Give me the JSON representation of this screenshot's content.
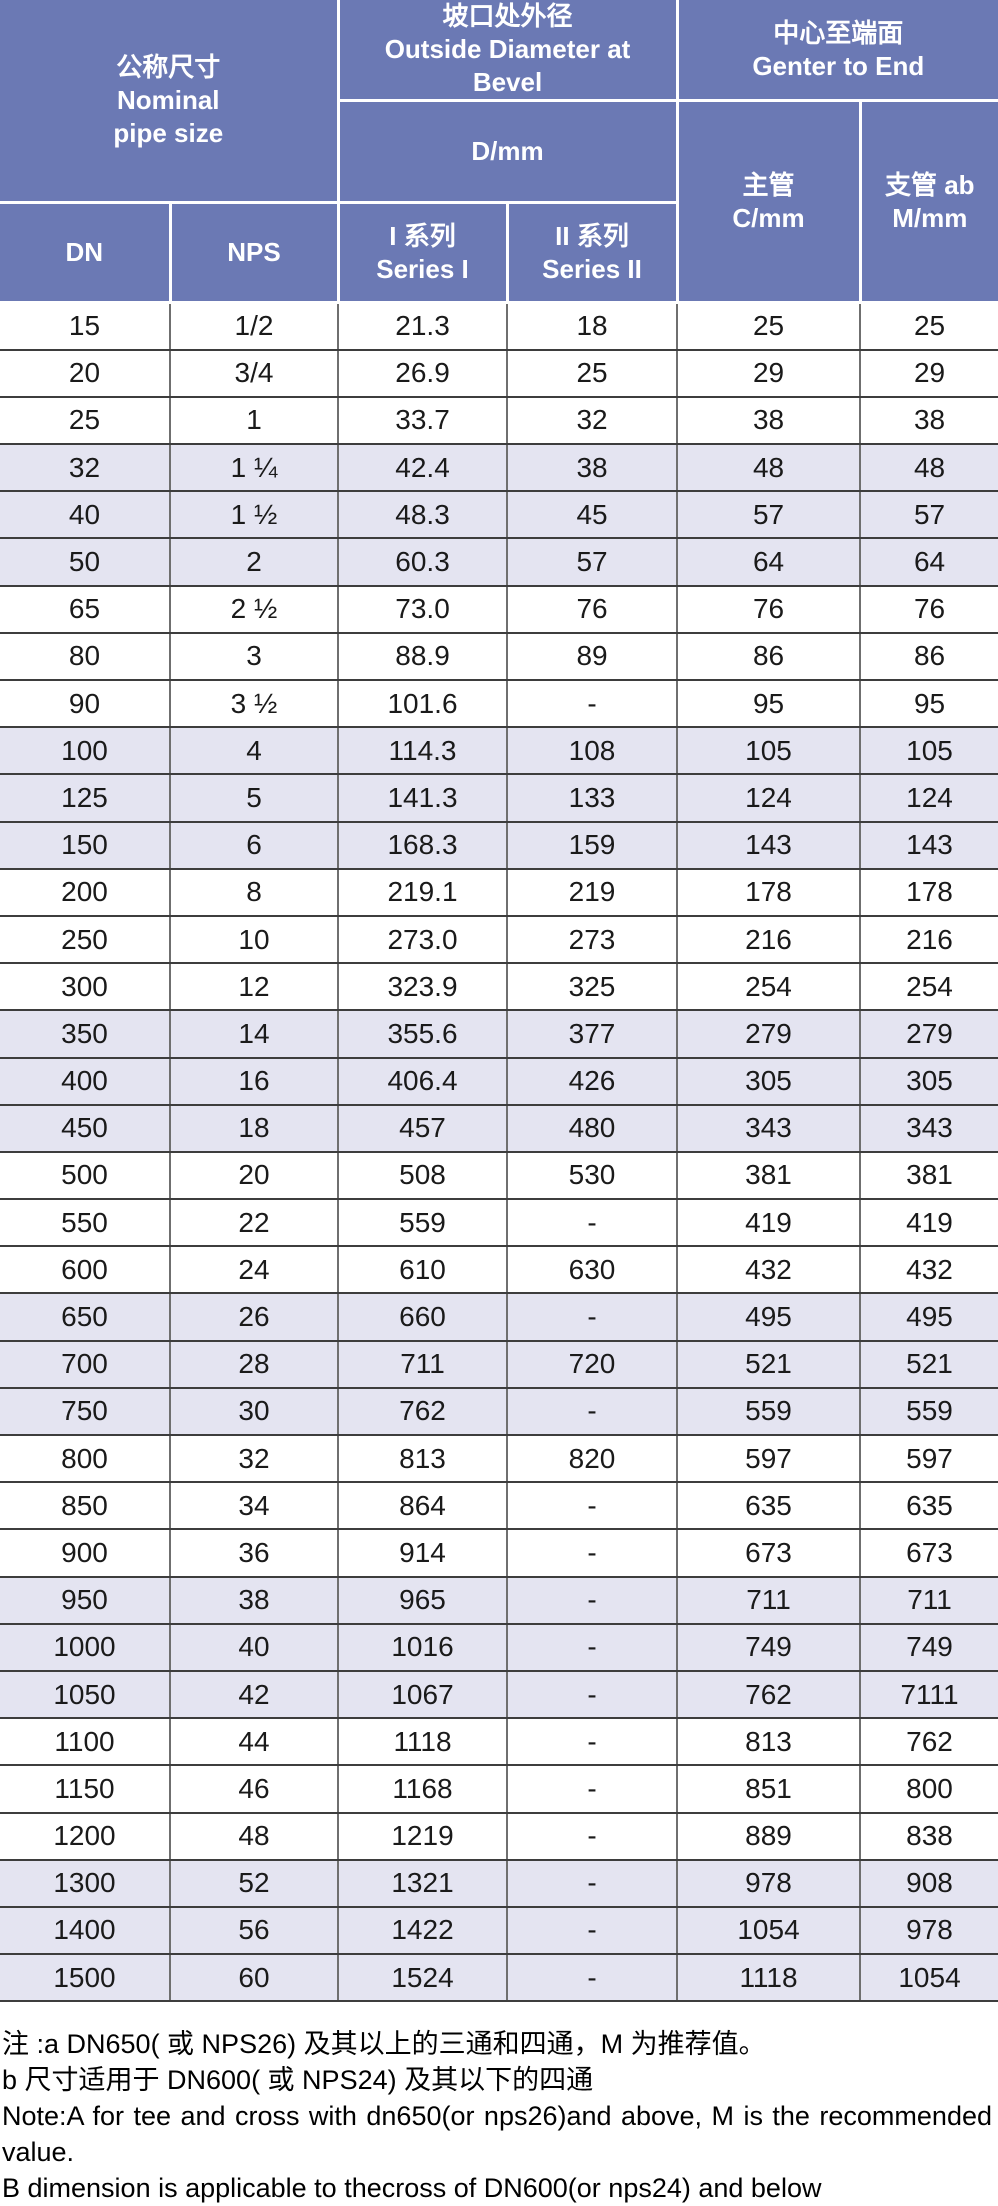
{
  "colors": {
    "header_bg": "#6b79b4",
    "header_text": "#ffffff",
    "shaded_row_bg": "#e4e4f1",
    "grid_vertical": "#6f6f6f",
    "grid_horizontal": "#3d3d3d"
  },
  "header": {
    "nominal_zh": "公称尺寸",
    "nominal_en_line1": "Nominal",
    "nominal_en_line2": "pipe size",
    "od_zh": "坡口处外径",
    "od_en": "Outside Diameter at Bevel",
    "d_label": "D/mm",
    "center_zh": "中心至端面",
    "center_en": "Genter to End",
    "dn": "DN",
    "nps": "NPS",
    "series1_zh": "I 系列",
    "series1_en": "Series I",
    "series2_zh": "II 系列",
    "series2_en": "Series II",
    "main_zh": "主管",
    "main_en": "C/mm",
    "branch_zh": "支管 ab",
    "branch_en": "M/mm"
  },
  "rows": [
    {
      "dn": "15",
      "nps": "1/2",
      "d1": "21.3",
      "d2": "18",
      "c": "25",
      "m": "25",
      "shaded": false
    },
    {
      "dn": "20",
      "nps": "3/4",
      "d1": "26.9",
      "d2": "25",
      "c": "29",
      "m": "29",
      "shaded": false
    },
    {
      "dn": "25",
      "nps": "1",
      "d1": "33.7",
      "d2": "32",
      "c": "38",
      "m": "38",
      "shaded": false
    },
    {
      "dn": "32",
      "nps": "1 ¼",
      "d1": "42.4",
      "d2": "38",
      "c": "48",
      "m": "48",
      "shaded": true
    },
    {
      "dn": "40",
      "nps": "1 ½",
      "d1": "48.3",
      "d2": "45",
      "c": "57",
      "m": "57",
      "shaded": true
    },
    {
      "dn": "50",
      "nps": "2",
      "d1": "60.3",
      "d2": "57",
      "c": "64",
      "m": "64",
      "shaded": true
    },
    {
      "dn": "65",
      "nps": "2 ½",
      "d1": "73.0",
      "d2": "76",
      "c": "76",
      "m": "76",
      "shaded": false
    },
    {
      "dn": "80",
      "nps": "3",
      "d1": "88.9",
      "d2": "89",
      "c": "86",
      "m": "86",
      "shaded": false
    },
    {
      "dn": "90",
      "nps": "3 ½",
      "d1": "101.6",
      "d2": "-",
      "c": "95",
      "m": "95",
      "shaded": false
    },
    {
      "dn": "100",
      "nps": "4",
      "d1": "114.3",
      "d2": "108",
      "c": "105",
      "m": "105",
      "shaded": true
    },
    {
      "dn": "125",
      "nps": "5",
      "d1": "141.3",
      "d2": "133",
      "c": "124",
      "m": "124",
      "shaded": true
    },
    {
      "dn": "150",
      "nps": "6",
      "d1": "168.3",
      "d2": "159",
      "c": "143",
      "m": "143",
      "shaded": true
    },
    {
      "dn": "200",
      "nps": "8",
      "d1": "219.1",
      "d2": "219",
      "c": "178",
      "m": "178",
      "shaded": false
    },
    {
      "dn": "250",
      "nps": "10",
      "d1": "273.0",
      "d2": "273",
      "c": "216",
      "m": "216",
      "shaded": false
    },
    {
      "dn": "300",
      "nps": "12",
      "d1": "323.9",
      "d2": "325",
      "c": "254",
      "m": "254",
      "shaded": false
    },
    {
      "dn": "350",
      "nps": "14",
      "d1": "355.6",
      "d2": "377",
      "c": "279",
      "m": "279",
      "shaded": true
    },
    {
      "dn": "400",
      "nps": "16",
      "d1": "406.4",
      "d2": "426",
      "c": "305",
      "m": "305",
      "shaded": true
    },
    {
      "dn": "450",
      "nps": "18",
      "d1": "457",
      "d2": "480",
      "c": "343",
      "m": "343",
      "shaded": true
    },
    {
      "dn": "500",
      "nps": "20",
      "d1": "508",
      "d2": "530",
      "c": "381",
      "m": "381",
      "shaded": false
    },
    {
      "dn": "550",
      "nps": "22",
      "d1": "559",
      "d2": "-",
      "c": "419",
      "m": "419",
      "shaded": false
    },
    {
      "dn": "600",
      "nps": "24",
      "d1": "610",
      "d2": "630",
      "c": "432",
      "m": "432",
      "shaded": false
    },
    {
      "dn": "650",
      "nps": "26",
      "d1": "660",
      "d2": "-",
      "c": "495",
      "m": "495",
      "shaded": true
    },
    {
      "dn": "700",
      "nps": "28",
      "d1": "711",
      "d2": "720",
      "c": "521",
      "m": "521",
      "shaded": true
    },
    {
      "dn": "750",
      "nps": "30",
      "d1": "762",
      "d2": "-",
      "c": "559",
      "m": "559",
      "shaded": true
    },
    {
      "dn": "800",
      "nps": "32",
      "d1": "813",
      "d2": "820",
      "c": "597",
      "m": "597",
      "shaded": false
    },
    {
      "dn": "850",
      "nps": "34",
      "d1": "864",
      "d2": "-",
      "c": "635",
      "m": "635",
      "shaded": false
    },
    {
      "dn": "900",
      "nps": "36",
      "d1": "914",
      "d2": "-",
      "c": "673",
      "m": "673",
      "shaded": false
    },
    {
      "dn": "950",
      "nps": "38",
      "d1": "965",
      "d2": "-",
      "c": "711",
      "m": "711",
      "shaded": true
    },
    {
      "dn": "1000",
      "nps": "40",
      "d1": "1016",
      "d2": "-",
      "c": "749",
      "m": "749",
      "shaded": true
    },
    {
      "dn": "1050",
      "nps": "42",
      "d1": "1067",
      "d2": "-",
      "c": "762",
      "m": "7111",
      "shaded": true
    },
    {
      "dn": "1100",
      "nps": "44",
      "d1": "1118",
      "d2": "-",
      "c": "813",
      "m": "762",
      "shaded": false
    },
    {
      "dn": "1150",
      "nps": "46",
      "d1": "1168",
      "d2": "-",
      "c": "851",
      "m": "800",
      "shaded": false
    },
    {
      "dn": "1200",
      "nps": "48",
      "d1": "1219",
      "d2": "-",
      "c": "889",
      "m": "838",
      "shaded": false
    },
    {
      "dn": "1300",
      "nps": "52",
      "d1": "1321",
      "d2": "-",
      "c": "978",
      "m": "908",
      "shaded": true
    },
    {
      "dn": "1400",
      "nps": "56",
      "d1": "1422",
      "d2": "-",
      "c": "1054",
      "m": "978",
      "shaded": true
    },
    {
      "dn": "1500",
      "nps": "60",
      "d1": "1524",
      "d2": "-",
      "c": "1118",
      "m": "1054",
      "shaded": true
    }
  ],
  "notes": [
    "注 :a DN650( 或 NPS26) 及其以上的三通和四通，M 为推荐值。",
    "b 尺寸适用于 DN600( 或 NPS24) 及其以下的四通",
    "Note:A for tee and cross with dn650(or nps26)and above, M is the recommended value.",
    "B dimension is applicable to thecross of DN600(or nps24) and below"
  ]
}
